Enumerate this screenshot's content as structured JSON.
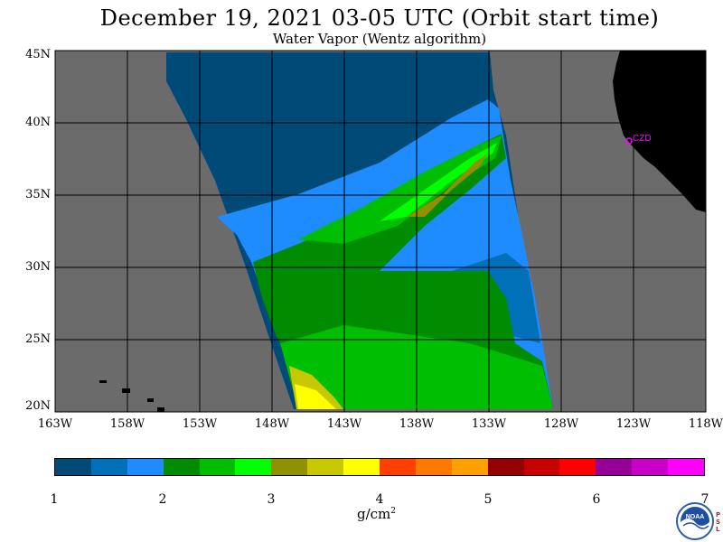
{
  "header": {
    "title": "December 19, 2021  03-05 UTC  (Orbit start time)",
    "subtitle": "Water Vapor (Wentz algorithm)"
  },
  "map": {
    "lat_labels": [
      "45N",
      "40N",
      "35N",
      "30N",
      "25N",
      "20N"
    ],
    "lon_labels": [
      "163W",
      "158W",
      "153W",
      "148W",
      "143W",
      "138W",
      "133W",
      "128W",
      "123W",
      "118W"
    ],
    "station_label": "CZD",
    "colors": {
      "no_data": "#6b6b6b",
      "land": "#000000",
      "station": "#ff00ff"
    }
  },
  "colorbar": {
    "ticks": [
      "1",
      "2",
      "3",
      "4",
      "5",
      "6",
      "7"
    ],
    "units": "g/cm",
    "units_exp": "2",
    "colors": [
      "#004a78",
      "#0070b8",
      "#1e8cff",
      "#008c00",
      "#00be00",
      "#00ff00",
      "#909000",
      "#c8c800",
      "#ffff00",
      "#ff4000",
      "#ff7800",
      "#ffa000",
      "#960000",
      "#c80000",
      "#ff0000",
      "#960096",
      "#c800c8",
      "#ff00ff"
    ]
  },
  "logo": {
    "name": "NOAA",
    "psl_text": "PSL"
  }
}
